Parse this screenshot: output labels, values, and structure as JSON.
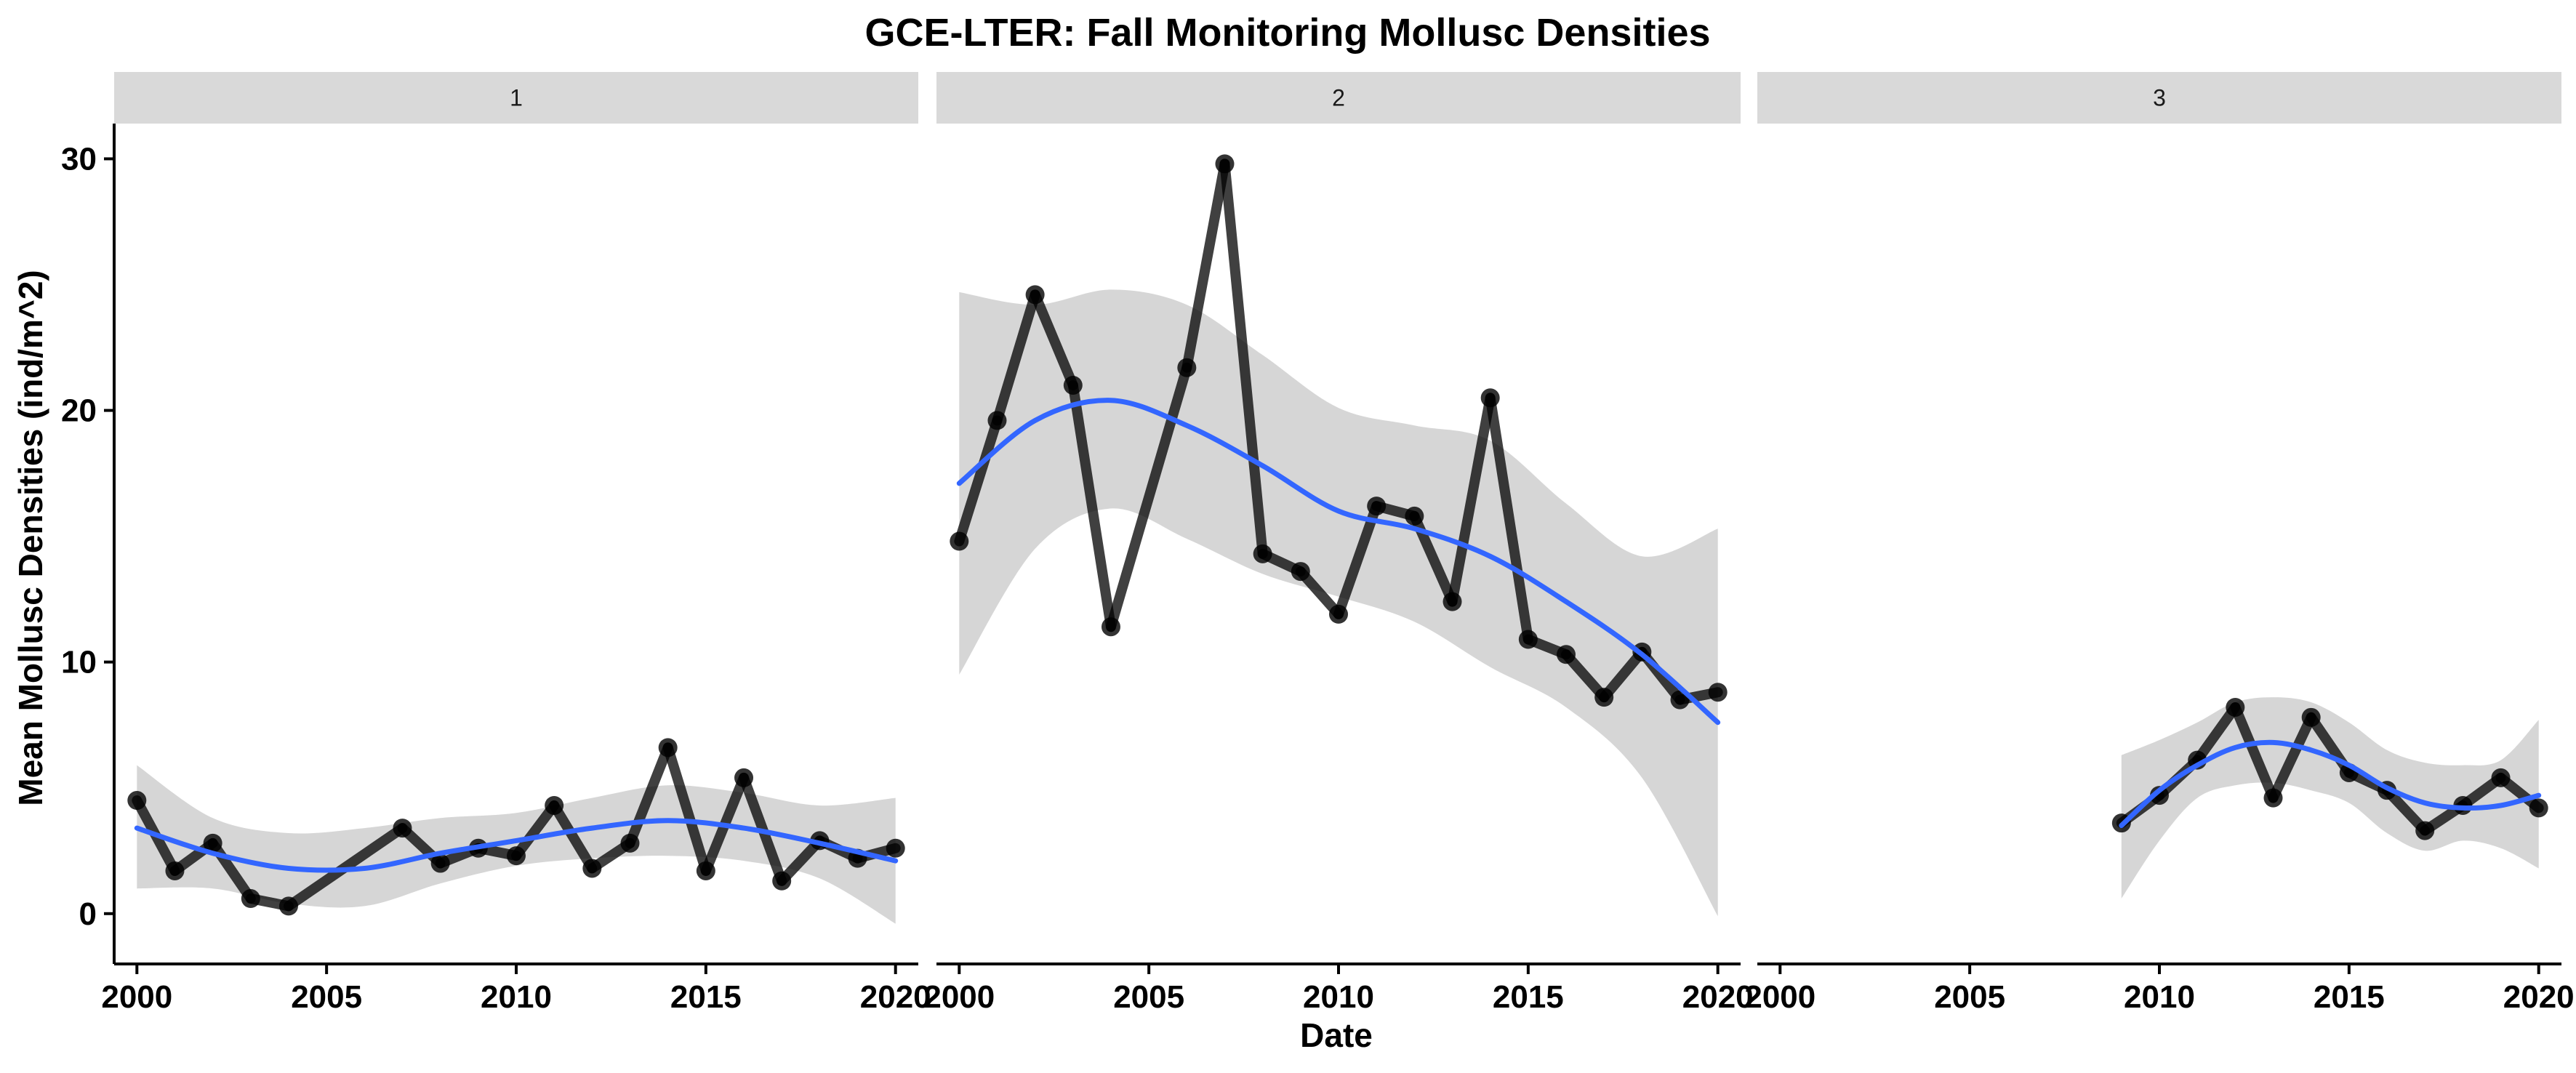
{
  "chart_data": {
    "type": "line",
    "title": "GCE-LTER: Fall Monitoring Mollusc Densities",
    "xlabel": "Date",
    "ylabel": "Mean Mollusc Densities (ind/m^2)",
    "xlim": [
      1999.4,
      2020.6
    ],
    "ylim": [
      -2,
      31.4
    ],
    "x_ticks": [
      2000,
      2005,
      2010,
      2015,
      2020
    ],
    "y_ticks": [
      0,
      10,
      20,
      30
    ],
    "grid": false,
    "line_color": "#000000",
    "smooth_color": "#3366ff",
    "band_color": "#c8c8c8",
    "panels": [
      {
        "label": "1",
        "series": [
          {
            "x": [
              2000,
              2001,
              2002,
              2003,
              2004,
              2007,
              2008,
              2009,
              2010,
              2011,
              2012,
              2013,
              2014,
              2015,
              2016,
              2017,
              2018,
              2019,
              2020
            ],
            "y": [
              4.5,
              1.7,
              2.8,
              0.6,
              0.3,
              3.4,
              2.0,
              2.6,
              2.3,
              4.3,
              1.8,
              2.8,
              6.6,
              1.7,
              5.4,
              1.3,
              2.9,
              2.2,
              2.6
            ]
          }
        ],
        "smooth": {
          "x": [
            2000,
            2002,
            2004,
            2006,
            2008,
            2010,
            2012,
            2014,
            2016,
            2018,
            2020
          ],
          "y": [
            3.4,
            2.4,
            1.8,
            1.8,
            2.4,
            2.9,
            3.4,
            3.7,
            3.4,
            2.8,
            2.1
          ],
          "lo": [
            1.0,
            1.0,
            0.4,
            0.3,
            1.2,
            1.9,
            2.2,
            2.3,
            2.1,
            1.4,
            -0.4
          ],
          "hi": [
            5.9,
            3.8,
            3.2,
            3.4,
            3.8,
            4.0,
            4.6,
            5.1,
            4.8,
            4.3,
            4.6
          ]
        }
      },
      {
        "label": "2",
        "series": [
          {
            "x": [
              2000,
              2001,
              2002,
              2003,
              2004,
              2006,
              2007,
              2008,
              2009,
              2010,
              2011,
              2012,
              2013,
              2014,
              2015,
              2016,
              2017,
              2018,
              2019,
              2020
            ],
            "y": [
              14.8,
              19.6,
              24.6,
              21.0,
              11.4,
              21.7,
              29.8,
              14.3,
              13.6,
              11.9,
              16.2,
              15.8,
              12.4,
              20.5,
              10.9,
              10.3,
              8.6,
              10.4,
              8.5,
              8.8
            ]
          }
        ],
        "smooth": {
          "x": [
            2000,
            2002,
            2004,
            2006,
            2008,
            2010,
            2012,
            2014,
            2016,
            2018,
            2020
          ],
          "y": [
            17.1,
            19.6,
            20.4,
            19.4,
            17.8,
            16.0,
            15.3,
            14.2,
            12.4,
            10.3,
            7.6
          ],
          "lo": [
            9.5,
            14.5,
            16.1,
            14.9,
            13.5,
            12.6,
            11.6,
            9.8,
            8.2,
            5.4,
            -0.1
          ],
          "hi": [
            24.7,
            24.2,
            24.8,
            24.2,
            22.2,
            20.1,
            19.4,
            18.8,
            16.3,
            14.2,
            15.3
          ]
        }
      },
      {
        "label": "3",
        "series": [
          {
            "x": [
              2009,
              2010,
              2011,
              2012,
              2013,
              2014,
              2015,
              2016,
              2017,
              2018,
              2019,
              2020
            ],
            "y": [
              3.6,
              4.7,
              6.1,
              8.2,
              4.6,
              7.8,
              5.6,
              4.9,
              3.3,
              4.3,
              5.4,
              4.2
            ]
          }
        ],
        "smooth": {
          "x": [
            2009,
            2010,
            2011,
            2012,
            2013,
            2014,
            2015,
            2016,
            2017,
            2018,
            2019,
            2020
          ],
          "y": [
            3.5,
            4.9,
            5.9,
            6.6,
            6.8,
            6.5,
            5.9,
            5.0,
            4.4,
            4.2,
            4.3,
            4.7
          ],
          "lo": [
            0.6,
            2.9,
            4.6,
            5.1,
            5.2,
            4.9,
            4.4,
            3.2,
            2.5,
            2.9,
            2.6,
            1.8
          ],
          "hi": [
            6.3,
            6.9,
            7.6,
            8.4,
            8.6,
            8.4,
            7.6,
            6.5,
            6.0,
            5.9,
            6.1,
            7.7
          ]
        }
      }
    ]
  }
}
